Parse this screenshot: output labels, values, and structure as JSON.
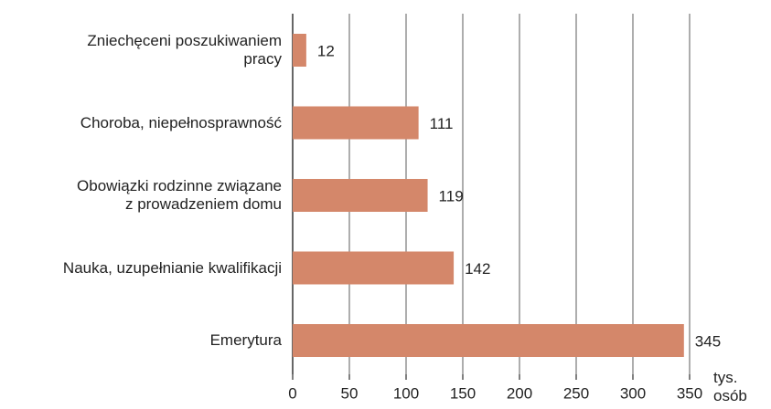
{
  "chart_data": {
    "type": "bar",
    "orientation": "horizontal",
    "categories": [
      "Zniechęceni poszukiwaniem\npracy",
      "Choroba, niepełnosprawność",
      "Obowiązki rodzinne związane\nz prowadzeniem domu",
      "Nauka, uzupełnianie kwalifikacji",
      "Emerytura"
    ],
    "values": [
      12,
      111,
      119,
      142,
      345
    ],
    "color": "#d4876a",
    "xlim": [
      0,
      350
    ],
    "xticks": [
      0,
      50,
      100,
      150,
      200,
      250,
      300,
      350
    ],
    "x_label": "tys.\nosób",
    "grid": true
  }
}
